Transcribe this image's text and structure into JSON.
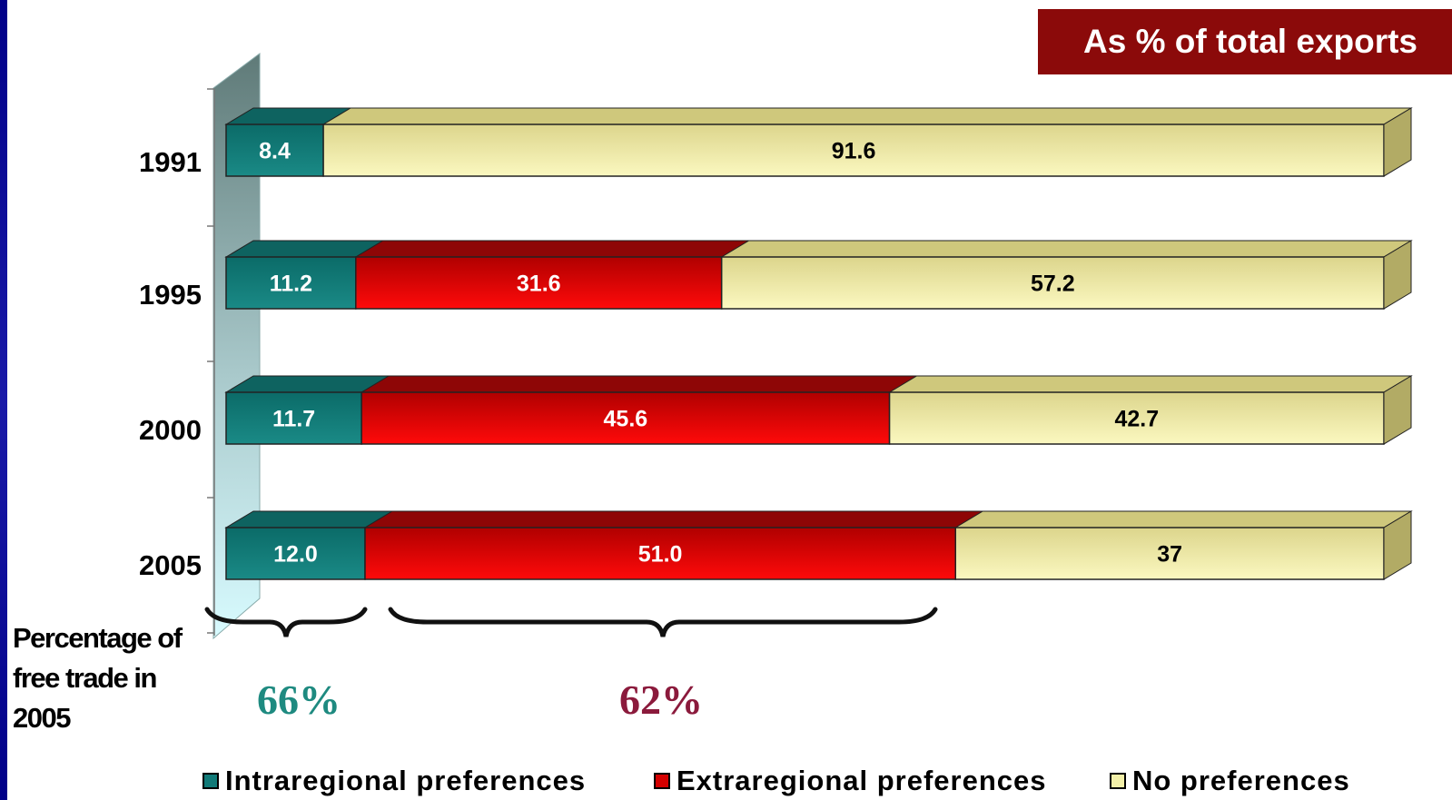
{
  "title": "As % of total exports",
  "note": "Percentage of free trade in 2005",
  "summary": {
    "intra_pct": "66%",
    "extra_pct": "62%"
  },
  "colors": {
    "intra": "#117a78",
    "extra": "#d40000",
    "none": "#f3f0a8",
    "title_bg": "#8b0a0a"
  },
  "legend": [
    {
      "label": "Intraregional preferences",
      "color": "#117a78"
    },
    {
      "label": "Extraregional preferences",
      "color": "#d40000"
    },
    {
      "label": "No preferences",
      "color": "#f3f0a8"
    }
  ],
  "chart_data": {
    "type": "bar",
    "orientation": "horizontal",
    "stacked": true,
    "categories": [
      "1991",
      "1995",
      "2000",
      "2005"
    ],
    "series": [
      {
        "name": "Intraregional preferences",
        "values": [
          8.4,
          11.2,
          11.7,
          12.0
        ],
        "labels": [
          "8.4",
          "11.2",
          "11.7",
          "12.0"
        ]
      },
      {
        "name": "Extraregional preferences",
        "values": [
          0,
          31.6,
          45.6,
          51.0
        ],
        "labels": [
          "",
          "31.6",
          "45.6",
          "51.0"
        ]
      },
      {
        "name": "No preferences",
        "values": [
          91.6,
          57.2,
          42.7,
          37
        ],
        "labels": [
          "91.6",
          "57.2",
          "42.7",
          "37"
        ]
      }
    ],
    "title": "As % of total exports",
    "xlim": [
      0,
      100
    ],
    "legend_position": "bottom",
    "grid": false
  }
}
